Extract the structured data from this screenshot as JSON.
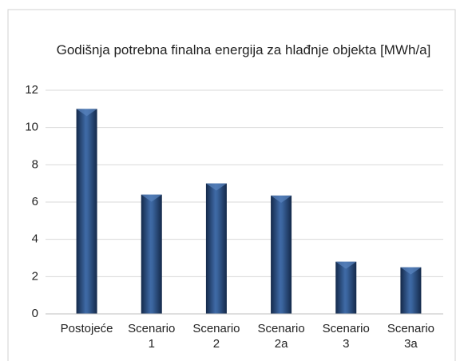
{
  "chart_data": {
    "type": "bar",
    "title": "Godišnja potrebna finalna energija za hlađnje objekta [MWh/a]",
    "categories": [
      "Postojeće",
      "Scenario 1",
      "Scenario 2",
      "Scenario 2a",
      "Scenario 3",
      "Scenario 3a"
    ],
    "values": [
      11,
      6.4,
      7.0,
      6.35,
      2.8,
      2.5
    ],
    "color": "#1f3f6e",
    "ylim": [
      0,
      12
    ],
    "yticks": [
      0,
      2,
      4,
      6,
      8,
      10,
      12
    ],
    "grid": true
  }
}
